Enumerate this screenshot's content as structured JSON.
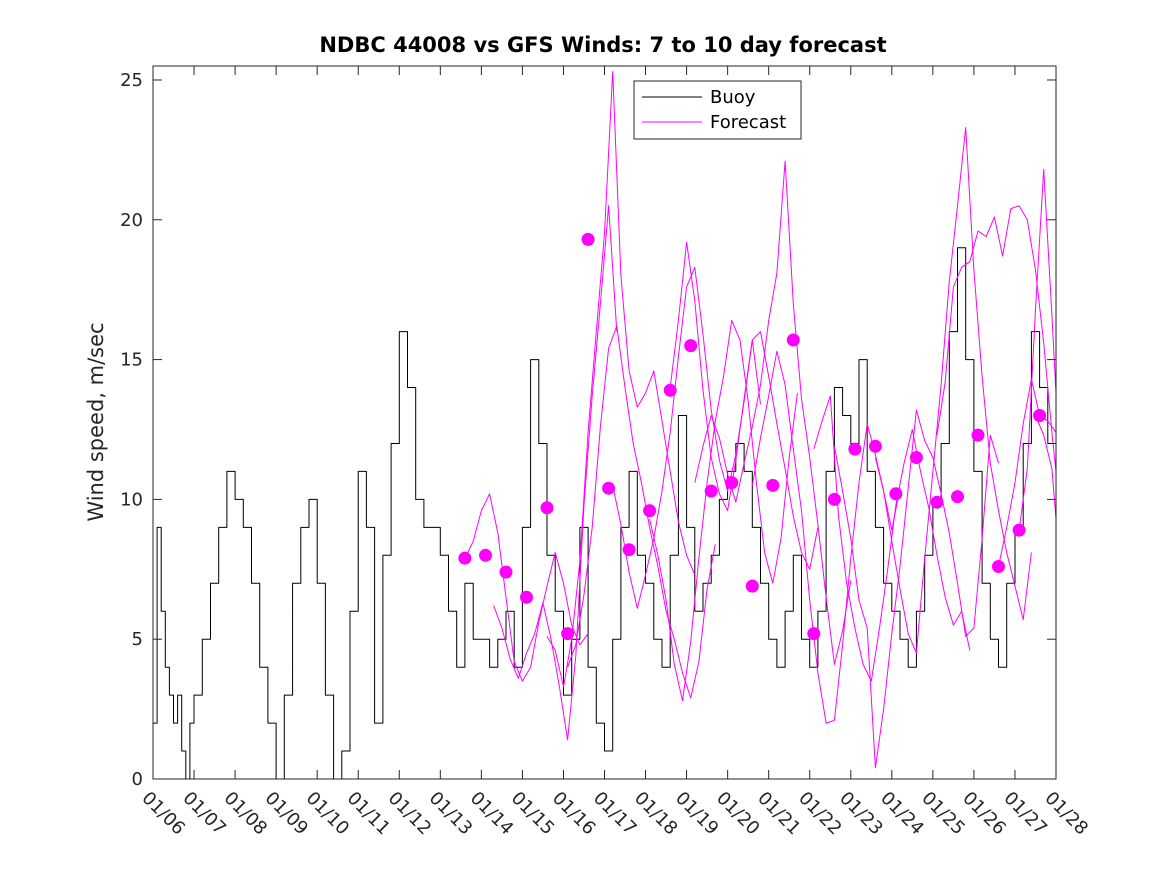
{
  "chart_data": {
    "type": "line",
    "title": "NDBC 44008 vs GFS Winds: 7 to 10 day forecast",
    "xlabel": "",
    "ylabel": "Wind speed, m/sec",
    "xlim": [
      0,
      22
    ],
    "ylim": [
      0,
      25.5
    ],
    "x_ticks": [
      "01/06",
      "01/07",
      "01/08",
      "01/09",
      "01/10",
      "01/11",
      "01/12",
      "01/13",
      "01/14",
      "01/15",
      "01/16",
      "01/17",
      "01/18",
      "01/19",
      "01/20",
      "01/21",
      "01/22",
      "01/23",
      "01/24",
      "01/25",
      "01/26",
      "01/27",
      "01/28"
    ],
    "y_ticks": [
      0,
      5,
      10,
      15,
      20,
      25
    ],
    "legend": {
      "placement": "top-center",
      "entries": [
        "Buoy",
        "Forecast"
      ]
    },
    "colors": {
      "buoy": "#000000",
      "forecast": "#ff00ff",
      "axes": "#262626"
    },
    "series": [
      {
        "name": "Buoy",
        "x": [
          0,
          0.1,
          0.2,
          0.3,
          0.4,
          0.5,
          0.6,
          0.7,
          0.8,
          0.9,
          1.0,
          1.2,
          1.4,
          1.6,
          1.8,
          2.0,
          2.2,
          2.4,
          2.6,
          2.8,
          3.0,
          3.2,
          3.4,
          3.6,
          3.8,
          4.0,
          4.2,
          4.4,
          4.6,
          4.8,
          5.0,
          5.2,
          5.4,
          5.6,
          5.8,
          6.0,
          6.2,
          6.4,
          6.6,
          6.8,
          7.0,
          7.2,
          7.4,
          7.6,
          7.8,
          8.0,
          8.2,
          8.4,
          8.6,
          8.8,
          9.0,
          9.2,
          9.4,
          9.6,
          9.8,
          10.0,
          10.2,
          10.4,
          10.6,
          10.8,
          11.0,
          11.2,
          11.4,
          11.6,
          11.8,
          12.0,
          12.2,
          12.4,
          12.6,
          12.8,
          13.0,
          13.2,
          13.4,
          13.6,
          13.8,
          14.0,
          14.2,
          14.4,
          14.6,
          14.8,
          15.0,
          15.2,
          15.4,
          15.6,
          15.8,
          16.0,
          16.2,
          16.4,
          16.6,
          16.8,
          17.0,
          17.2,
          17.4,
          17.6,
          17.8,
          18.0,
          18.2,
          18.4,
          18.6,
          18.8,
          19.0,
          19.2,
          19.4,
          19.6,
          19.8,
          20.0,
          20.2,
          20.4,
          20.6,
          20.8,
          21.0,
          21.2,
          21.4,
          21.6,
          21.8,
          22.0
        ],
        "values": [
          2,
          9,
          6,
          4,
          3,
          2,
          3,
          1,
          0,
          2,
          3,
          5,
          7,
          9,
          11,
          10,
          9,
          7,
          4,
          2,
          0,
          3,
          7,
          9,
          10,
          7,
          3,
          0,
          1,
          6,
          11,
          9,
          2,
          8,
          12,
          16,
          14,
          10,
          9,
          9,
          8,
          6,
          4,
          7,
          5,
          5,
          4,
          5,
          6,
          4,
          9,
          15,
          12,
          8,
          6,
          3,
          5,
          9,
          4,
          2,
          1,
          5,
          9,
          11,
          8,
          7,
          5,
          4,
          8,
          13,
          9,
          6,
          7,
          8,
          10,
          11,
          12,
          11,
          9,
          7,
          5,
          4,
          6,
          8,
          5,
          4,
          6,
          11,
          14,
          13,
          12,
          15,
          11,
          9,
          7,
          6,
          5,
          4,
          6,
          8,
          10,
          12,
          16,
          19,
          15,
          11,
          7,
          5,
          4,
          7,
          9,
          12,
          16,
          14,
          12,
          10
        ]
      },
      {
        "name": "Forecast",
        "x": [
          7.6,
          7.8,
          8.0,
          8.2,
          8.4,
          8.6,
          8.8,
          9.0,
          9.2,
          9.4,
          9.6,
          9.8,
          10.0,
          10.2,
          10.4,
          10.6
        ],
        "values": [
          7.9,
          8.5,
          9.6,
          10.2,
          8.8,
          6.5,
          4.2,
          3.5,
          4.0,
          5.6,
          6.9,
          8.1,
          7.0,
          5.5,
          4.8,
          5.2
        ]
      },
      {
        "name": "Forecast",
        "x": [
          8.3,
          8.5,
          8.7,
          8.9,
          9.1,
          9.3,
          9.5,
          9.7,
          9.9,
          10.1,
          10.3,
          10.5,
          10.7,
          10.9,
          11.1,
          11.3
        ],
        "values": [
          6.2,
          5.4,
          4.3,
          3.6,
          4.5,
          5.2,
          6.3,
          5.0,
          3.3,
          1.4,
          4.4,
          9.8,
          13.7,
          17.0,
          20.5,
          16.0
        ]
      },
      {
        "name": "Forecast",
        "x": [
          9.6,
          9.8,
          10.0,
          10.2,
          10.4,
          10.6,
          10.8,
          11.0,
          11.2,
          11.4,
          11.6,
          11.8,
          12.0,
          12.2,
          12.4,
          12.6,
          12.8,
          13.0,
          13.2
        ],
        "values": [
          5.1,
          4.6,
          3.3,
          5.0,
          7.8,
          12.4,
          16.0,
          19.5,
          25.3,
          18.0,
          14.6,
          13.3,
          13.8,
          14.6,
          12.8,
          11.0,
          9.2,
          8.0,
          7.3
        ]
      },
      {
        "name": "Forecast",
        "x": [
          10.1,
          10.3,
          10.5,
          10.7,
          10.9,
          11.1,
          11.3,
          11.5,
          11.7,
          11.9,
          12.1,
          12.3,
          12.5,
          12.7,
          12.9,
          13.1,
          13.3,
          13.5,
          13.7
        ],
        "values": [
          4.0,
          4.8,
          6.6,
          9.0,
          12.6,
          15.4,
          16.2,
          14.0,
          12.0,
          10.6,
          9.0,
          7.6,
          6.0,
          5.0,
          3.8,
          2.9,
          4.2,
          6.8,
          8.4
        ]
      },
      {
        "name": "Forecast",
        "x": [
          11.2,
          11.4,
          11.6,
          11.8,
          12.0,
          12.2,
          12.4,
          12.6,
          12.8,
          13.0,
          13.2,
          13.4,
          13.6,
          13.8,
          14.0,
          14.2,
          14.4,
          14.6,
          14.8
        ],
        "values": [
          10.5,
          9.1,
          7.4,
          6.1,
          7.3,
          8.6,
          10.3,
          12.4,
          15.1,
          17.6,
          18.3,
          15.9,
          13.2,
          11.4,
          10.3,
          11.6,
          13.5,
          15.7,
          13.4
        ]
      },
      {
        "name": "Forecast",
        "x": [
          12.1,
          12.3,
          12.5,
          12.7,
          12.9,
          13.1,
          13.3,
          13.5,
          13.7,
          13.9,
          14.1,
          14.3,
          14.5,
          14.7,
          14.9,
          15.1,
          15.3,
          15.5,
          15.7
        ],
        "values": [
          9.3,
          8.0,
          6.4,
          4.1,
          2.8,
          4.9,
          7.9,
          10.6,
          12.8,
          14.4,
          16.4,
          15.7,
          13.5,
          10.6,
          8.1,
          7.0,
          8.6,
          11.5,
          13.8
        ]
      },
      {
        "name": "Forecast",
        "x": [
          12.6,
          12.8,
          13.0,
          13.2,
          13.4,
          13.6,
          13.8,
          14.0,
          14.2,
          14.4,
          14.6,
          14.8,
          15.0,
          15.2,
          15.4,
          15.6,
          15.8,
          16.0,
          16.2
        ],
        "values": [
          14.0,
          16.4,
          19.2,
          17.1,
          13.9,
          11.5,
          10.2,
          9.6,
          11.4,
          13.6,
          15.7,
          16.0,
          14.4,
          12.7,
          11.1,
          9.4,
          8.1,
          7.5,
          9.0
        ]
      },
      {
        "name": "Forecast",
        "x": [
          13.2,
          13.4,
          13.6,
          13.8,
          14.0,
          14.2,
          14.4,
          14.6,
          14.8,
          15.0,
          15.2,
          15.4,
          15.6,
          15.8,
          16.0,
          16.2,
          16.4,
          16.6,
          16.8,
          17.0
        ],
        "values": [
          10.6,
          11.9,
          13.0,
          12.2,
          10.9,
          9.9,
          11.3,
          12.6,
          14.1,
          16.4,
          18.1,
          22.1,
          17.0,
          13.6,
          11.5,
          9.1,
          6.5,
          4.1,
          5.3,
          7.1
        ]
      },
      {
        "name": "Forecast",
        "x": [
          14.6,
          14.8,
          15.0,
          15.2,
          15.4,
          15.6,
          15.8,
          16.0,
          16.2,
          16.4,
          16.6,
          16.8,
          17.0,
          17.2,
          17.4,
          17.6,
          17.8,
          18.0,
          18.2
        ],
        "values": [
          10.5,
          12.2,
          13.7,
          15.3,
          14.1,
          11.8,
          9.6,
          6.4,
          3.8,
          2.0,
          2.1,
          4.8,
          7.9,
          10.6,
          12.7,
          11.6,
          10.3,
          8.9,
          10.4
        ]
      },
      {
        "name": "Forecast",
        "x": [
          16.1,
          16.3,
          16.5,
          16.7,
          16.9,
          17.1,
          17.3,
          17.5,
          17.7,
          17.9,
          18.1,
          18.3,
          18.5,
          18.7,
          18.9,
          19.1,
          19.3,
          19.5,
          19.7,
          19.9
        ],
        "values": [
          11.8,
          12.8,
          13.7,
          9.4,
          7.0,
          5.4,
          4.1,
          3.5,
          5.4,
          7.5,
          9.8,
          11.3,
          12.5,
          11.0,
          9.7,
          8.0,
          6.5,
          5.5,
          6.0,
          4.6
        ]
      },
      {
        "name": "Forecast",
        "x": [
          16.6,
          16.8,
          17.0,
          17.2,
          17.4,
          17.6,
          17.8,
          18.0,
          18.2,
          18.4,
          18.6,
          18.8,
          19.0,
          19.2,
          19.4,
          19.6,
          19.8,
          20.0,
          20.2,
          20.4,
          20.6
        ],
        "values": [
          11.9,
          10.3,
          8.6,
          6.4,
          5.4,
          0.4,
          2.5,
          5.2,
          7.6,
          10.4,
          13.2,
          12.1,
          11.5,
          10.2,
          8.8,
          7.0,
          5.1,
          5.4,
          8.6,
          12.3,
          11.3
        ]
      },
      {
        "name": "Forecast",
        "x": [
          17.6,
          17.8,
          18.0,
          18.2,
          18.4,
          18.6,
          18.8,
          19.0,
          19.2,
          19.4,
          19.6,
          19.8,
          20.0,
          20.2,
          20.4,
          20.6,
          20.8,
          21.0,
          21.2,
          21.4
        ],
        "values": [
          11.5,
          10.3,
          8.5,
          6.8,
          5.2,
          4.5,
          7.9,
          11.0,
          14.1,
          17.8,
          20.5,
          23.3,
          18.2,
          14.4,
          11.3,
          9.6,
          8.1,
          6.9,
          5.7,
          8.1
        ]
      },
      {
        "name": "Forecast",
        "x": [
          19.1,
          19.3,
          19.5,
          19.7,
          19.9,
          20.1,
          20.3,
          20.5,
          20.7,
          20.9,
          21.1,
          21.3,
          21.5,
          21.7,
          21.9,
          22.0
        ],
        "values": [
          12.3,
          14.2,
          17.6,
          18.3,
          18.5,
          19.6,
          19.4,
          20.1,
          18.7,
          20.4,
          20.5,
          20.0,
          18.2,
          15.6,
          12.4,
          11.0
        ]
      },
      {
        "name": "Forecast",
        "x": [
          20.6,
          20.8,
          21.0,
          21.2,
          21.4,
          21.6,
          21.8,
          22.0
        ],
        "values": [
          7.6,
          9.0,
          10.6,
          12.7,
          14.3,
          13.0,
          12.8,
          12.4
        ]
      },
      {
        "name": "Forecast",
        "x": [
          21.1,
          21.3,
          21.5,
          21.7,
          21.9,
          22.0
        ],
        "values": [
          8.9,
          11.1,
          16.8,
          21.8,
          16.6,
          13.8
        ]
      },
      {
        "name": "Forecast",
        "x": [
          21.5,
          21.7,
          21.9,
          22.0
        ],
        "values": [
          13.0,
          12.3,
          11.1,
          9.3
        ]
      }
    ],
    "forecast_markers": {
      "x": [
        7.6,
        8.1,
        8.6,
        9.1,
        9.6,
        10.1,
        10.6,
        11.1,
        11.6,
        12.1,
        12.6,
        13.1,
        13.6,
        14.1,
        14.6,
        15.1,
        15.6,
        16.1,
        16.6,
        17.1,
        17.6,
        18.1,
        18.6,
        19.1,
        19.6,
        20.1,
        20.6,
        21.1,
        21.6
      ],
      "values": [
        7.9,
        8.0,
        7.4,
        6.5,
        9.7,
        5.2,
        19.3,
        10.4,
        8.2,
        9.6,
        13.9,
        15.5,
        10.3,
        10.6,
        6.9,
        10.5,
        15.7,
        5.2,
        10.0,
        11.8,
        11.9,
        10.2,
        11.5,
        9.9,
        10.1,
        12.3,
        7.6,
        8.9,
        13.0
      ]
    }
  }
}
